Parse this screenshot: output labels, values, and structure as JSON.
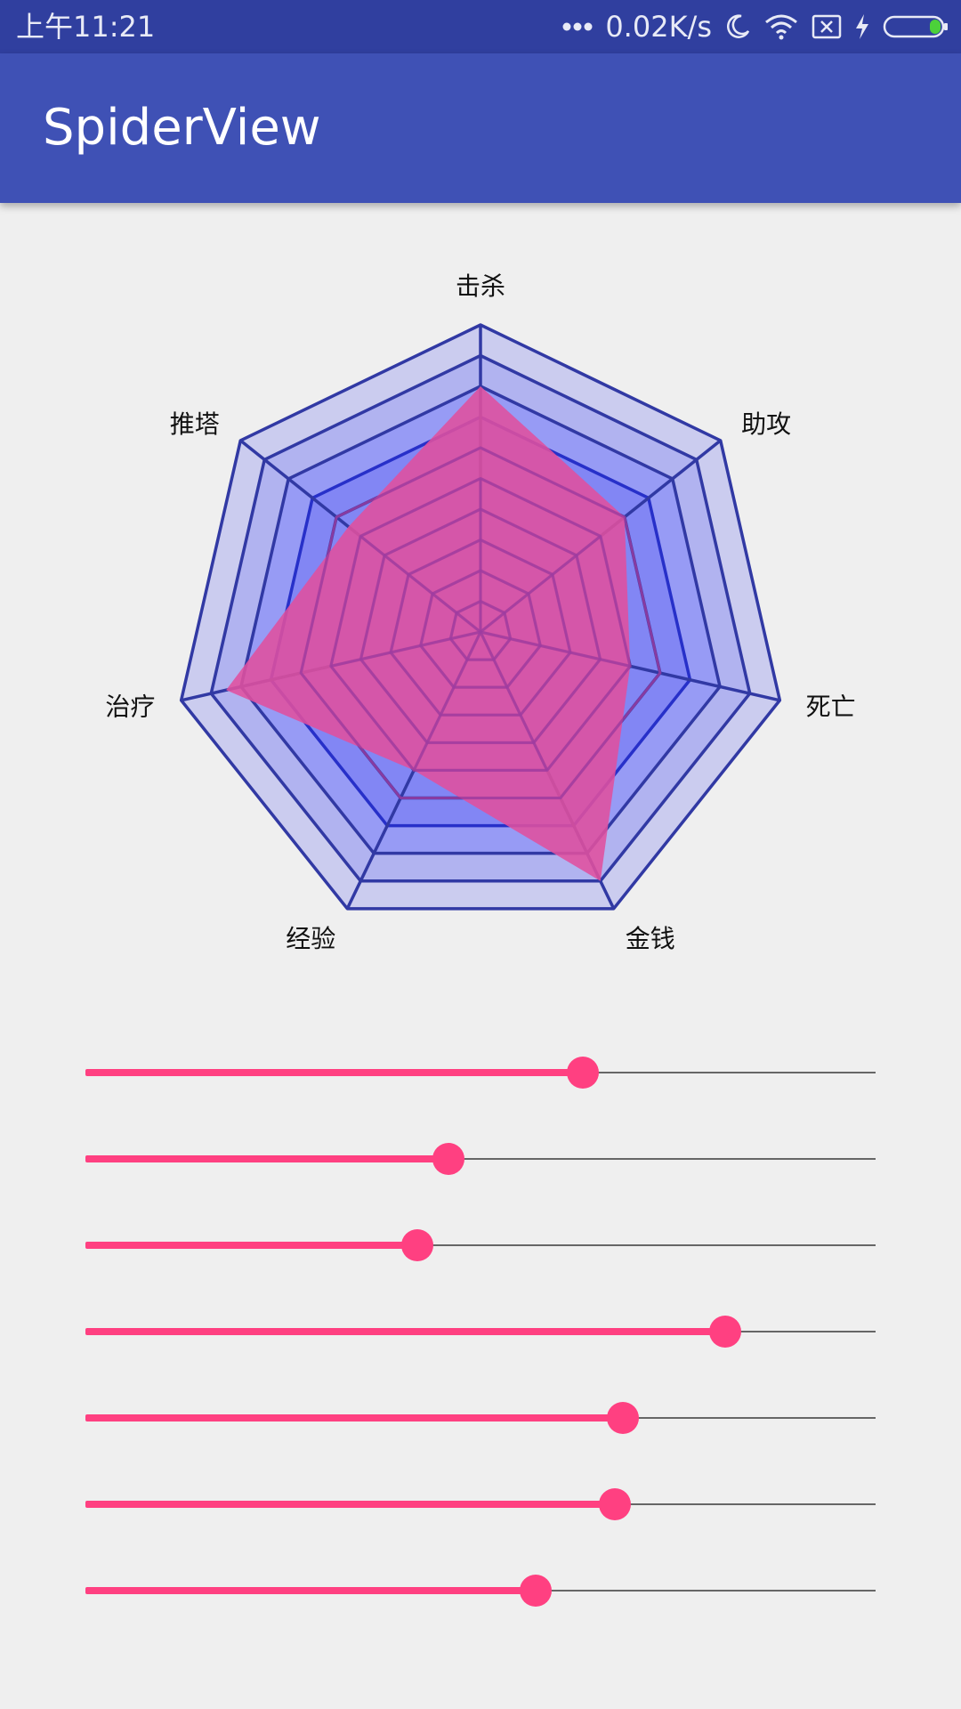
{
  "status_bar": {
    "time": "上午11:21",
    "network_speed": "0.02K/s",
    "icons": [
      "more-dots-icon",
      "moon-icon",
      "wifi-icon",
      "no-sim-icon",
      "charging-bolt-icon",
      "battery-icon"
    ]
  },
  "app_bar": {
    "title": "SpiderView"
  },
  "spider_chart": {
    "axes": [
      "击杀",
      "助攻",
      "死亡",
      "金钱",
      "经验",
      "治疗",
      "推塔"
    ],
    "values": [
      0.8,
      0.6,
      0.5,
      0.9,
      0.5,
      0.85,
      0.55
    ],
    "levels": 10,
    "colors": {
      "band_outer": "#cbccef",
      "band_middle": "#b1b3f0",
      "band_inner": "#979bf5",
      "band_core": "#8286f4",
      "inner_outline": "#2730c9",
      "outline": "#3139a4",
      "data_fill": "#e0509e",
      "data_web": "#9d3ca0"
    }
  },
  "sliders": [
    {
      "value": 0.63
    },
    {
      "value": 0.46
    },
    {
      "value": 0.42
    },
    {
      "value": 0.81
    },
    {
      "value": 0.68
    },
    {
      "value": 0.67
    },
    {
      "value": 0.57
    }
  ],
  "slider_colors": {
    "active": "#ff4081",
    "track": "#666666"
  }
}
